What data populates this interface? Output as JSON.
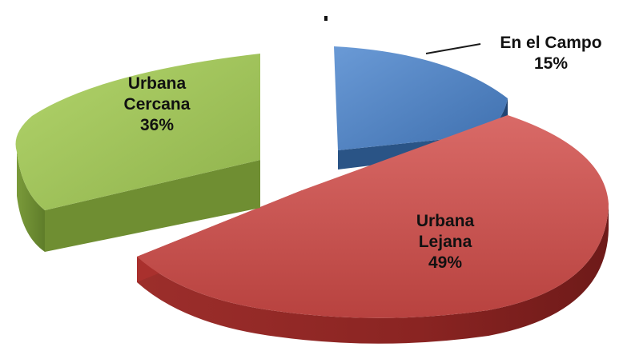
{
  "chart_data": {
    "type": "pie",
    "style": "3d-exploded",
    "slices": [
      {
        "line1": "En el Campo",
        "line2": "",
        "pct_label": "15%",
        "value": 15,
        "color": "#4a7dbf"
      },
      {
        "line1": "Urbana",
        "line2": "Lejana",
        "pct_label": "49%",
        "value": 49,
        "color": "#c0504d"
      },
      {
        "line1": "Urbana",
        "line2": "Cercana",
        "pct_label": "36%",
        "value": 36,
        "color": "#9bbb59"
      }
    ],
    "legend": "none"
  }
}
